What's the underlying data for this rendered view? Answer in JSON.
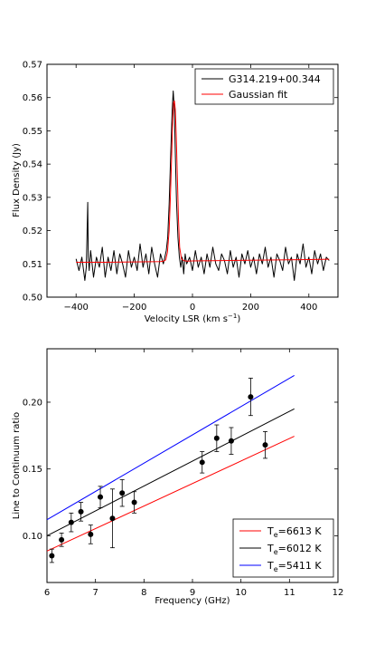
{
  "colors": {
    "spectrum": "#000000",
    "gaussian_fit": "#ff0000",
    "te_6613": "#ff0000",
    "te_6012": "#000000",
    "te_5411": "#0000ff",
    "points": "#000000"
  },
  "chart_data": [
    {
      "type": "line",
      "xlabel_main": "Velocity LSR (km s",
      "xlabel_sup": "−1",
      "xlabel_end": ")",
      "ylabel": "Flux Density (Jy)",
      "xlim": [
        -500,
        500
      ],
      "ylim": [
        0.5,
        0.57
      ],
      "x_ticks": [
        -400,
        -200,
        0,
        200,
        400
      ],
      "x_tick_labels": [
        "−400",
        "−200",
        "0",
        "200",
        "400"
      ],
      "y_ticks": [
        0.5,
        0.51,
        0.52,
        0.53,
        0.54,
        0.55,
        0.56,
        0.57
      ],
      "y_tick_labels": [
        "0.50",
        "0.51",
        "0.52",
        "0.53",
        "0.54",
        "0.55",
        "0.56",
        "0.57"
      ],
      "grid": false,
      "legend_position": "top-right",
      "series": [
        {
          "name": "G314.219+00.344",
          "style": "line",
          "color": "#000000",
          "x": [
            -400,
            -390,
            -380,
            -370,
            -365,
            -360,
            -358,
            -355,
            -350,
            -340,
            -330,
            -320,
            -310,
            -300,
            -290,
            -280,
            -270,
            -260,
            -250,
            -240,
            -230,
            -220,
            -210,
            -200,
            -190,
            -180,
            -170,
            -160,
            -150,
            -140,
            -130,
            -120,
            -110,
            -100,
            -95,
            -90,
            -85,
            -80,
            -75,
            -70,
            -66,
            -62,
            -58,
            -55,
            -50,
            -45,
            -40,
            -35,
            -30,
            -25,
            -20,
            -10,
            0,
            10,
            20,
            30,
            40,
            50,
            60,
            70,
            80,
            90,
            100,
            110,
            120,
            130,
            140,
            150,
            160,
            170,
            180,
            190,
            200,
            210,
            220,
            230,
            240,
            250,
            260,
            270,
            280,
            290,
            300,
            310,
            320,
            330,
            340,
            350,
            360,
            370,
            380,
            390,
            400,
            410,
            420,
            430,
            440,
            450,
            460,
            470
          ],
          "y": [
            0.5115,
            0.508,
            0.512,
            0.505,
            0.509,
            0.5285,
            0.512,
            0.508,
            0.514,
            0.506,
            0.512,
            0.509,
            0.515,
            0.506,
            0.512,
            0.508,
            0.514,
            0.507,
            0.513,
            0.51,
            0.506,
            0.514,
            0.509,
            0.512,
            0.508,
            0.516,
            0.509,
            0.513,
            0.507,
            0.515,
            0.51,
            0.506,
            0.513,
            0.51,
            0.512,
            0.514,
            0.518,
            0.528,
            0.542,
            0.556,
            0.562,
            0.556,
            0.54,
            0.529,
            0.518,
            0.512,
            0.509,
            0.512,
            0.507,
            0.513,
            0.51,
            0.512,
            0.508,
            0.514,
            0.509,
            0.512,
            0.507,
            0.513,
            0.509,
            0.515,
            0.51,
            0.508,
            0.513,
            0.511,
            0.507,
            0.514,
            0.509,
            0.512,
            0.506,
            0.513,
            0.51,
            0.514,
            0.509,
            0.512,
            0.507,
            0.513,
            0.51,
            0.515,
            0.509,
            0.512,
            0.506,
            0.513,
            0.511,
            0.508,
            0.515,
            0.51,
            0.512,
            0.505,
            0.513,
            0.51,
            0.516,
            0.509,
            0.512,
            0.507,
            0.514,
            0.51,
            0.513,
            0.508,
            0.512,
            0.511
          ]
        },
        {
          "name": "Gaussian fit",
          "style": "line",
          "color": "#ff0000",
          "x": [
            -400,
            -300,
            -200,
            -110,
            -100,
            -92,
            -86,
            -80,
            -76,
            -72,
            -68,
            -65,
            -62,
            -59,
            -56,
            -52,
            -48,
            -44,
            -38,
            -30,
            -20,
            0,
            100,
            200,
            300,
            400,
            470
          ],
          "y": [
            0.5105,
            0.5105,
            0.5106,
            0.5107,
            0.5108,
            0.5112,
            0.5135,
            0.52,
            0.5295,
            0.541,
            0.553,
            0.5585,
            0.559,
            0.5565,
            0.549,
            0.536,
            0.5235,
            0.515,
            0.5115,
            0.511,
            0.5108,
            0.5109,
            0.511,
            0.5111,
            0.5112,
            0.5113,
            0.5114
          ]
        }
      ]
    },
    {
      "type": "scatter",
      "xlabel": "Frequency (GHz)",
      "ylabel": "Line to Continuum ratio",
      "xlim": [
        6,
        12
      ],
      "ylim": [
        0.065,
        0.24
      ],
      "x_ticks": [
        6,
        7,
        8,
        9,
        10,
        11,
        12
      ],
      "x_tick_labels": [
        "6",
        "7",
        "8",
        "9",
        "10",
        "11",
        "12"
      ],
      "y_ticks": [
        0.1,
        0.15,
        0.2
      ],
      "y_tick_labels": [
        "0.10",
        "0.15",
        "0.20"
      ],
      "grid": false,
      "legend_position": "bottom-right",
      "points": {
        "x": [
          6.1,
          6.3,
          6.5,
          6.7,
          6.9,
          7.1,
          7.35,
          7.55,
          7.8,
          9.2,
          9.5,
          9.8,
          10.2,
          10.5
        ],
        "y": [
          0.085,
          0.097,
          0.11,
          0.118,
          0.101,
          0.129,
          0.113,
          0.132,
          0.125,
          0.155,
          0.173,
          0.171,
          0.204,
          0.168
        ],
        "err": [
          0.005,
          0.005,
          0.007,
          0.007,
          0.007,
          0.008,
          0.022,
          0.01,
          0.008,
          0.008,
          0.01,
          0.01,
          0.014,
          0.01
        ]
      },
      "series": [
        {
          "label_main": "T",
          "label_sub": "e",
          "label_rest": "=6613 K",
          "color": "#ff0000",
          "x": [
            6,
            11.1
          ],
          "y": [
            0.0885,
            0.1745
          ]
        },
        {
          "label_main": "T",
          "label_sub": "e",
          "label_rest": "=6012 K",
          "color": "#000000",
          "x": [
            6,
            11.1
          ],
          "y": [
            0.1,
            0.195
          ]
        },
        {
          "label_main": "T",
          "label_sub": "e",
          "label_rest": "=5411 K",
          "color": "#0000ff",
          "x": [
            6,
            11.1
          ],
          "y": [
            0.112,
            0.22
          ]
        }
      ]
    }
  ]
}
